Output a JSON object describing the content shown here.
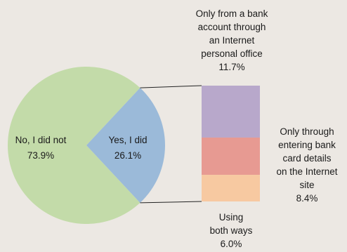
{
  "chart_data": {
    "type": "pie",
    "pie": {
      "slices": [
        {
          "label": "No, I did not",
          "value": 73.9,
          "value_label": "73.9%",
          "color": "#C3DBA9"
        },
        {
          "label": "Yes, I did",
          "value": 26.1,
          "value_label": "26.1%",
          "color": "#9BBAD9"
        }
      ]
    },
    "breakdown_of": "Yes, I did",
    "bar": {
      "segments": [
        {
          "label_lines": [
            "Only from a bank",
            "account through",
            "an Internet",
            "personal office"
          ],
          "value": 11.7,
          "value_label": "11.7%",
          "color": "#B8A8CB"
        },
        {
          "label_lines": [
            "Only through",
            "entering bank",
            "card details",
            "on the Internet",
            "site"
          ],
          "value": 8.4,
          "value_label": "8.4%",
          "color": "#E79A92"
        },
        {
          "label_lines": [
            "Using",
            "both ways"
          ],
          "value": 6.0,
          "value_label": "6.0%",
          "color": "#F7C9A1"
        }
      ]
    },
    "background": "#ECE8E3",
    "connector_color": "#222222"
  }
}
